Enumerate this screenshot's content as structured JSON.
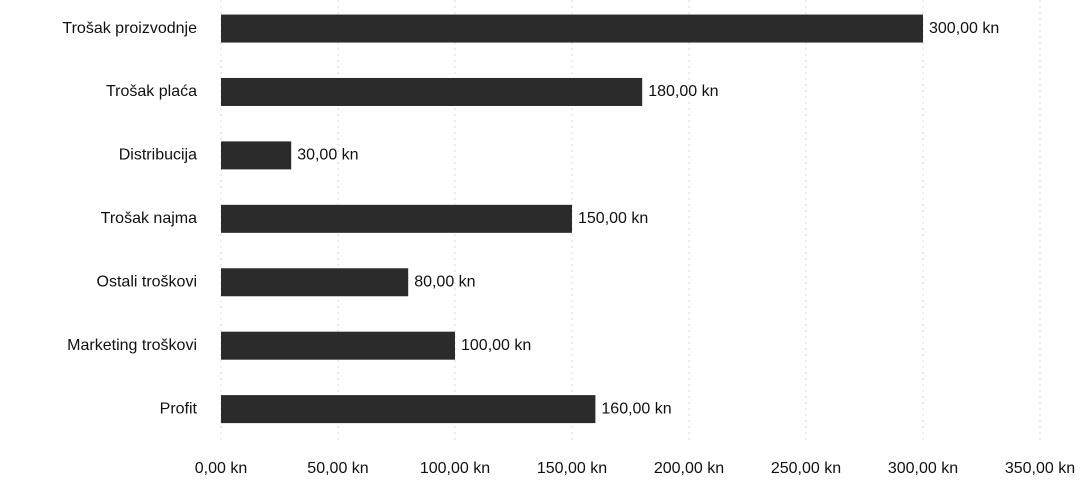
{
  "chart_data": {
    "type": "bar",
    "orientation": "horizontal",
    "categories": [
      "Trošak proizvodnje",
      "Trošak plaća",
      "Distribucija",
      "Trošak najma",
      "Ostali troškovi",
      "Marketing troškovi",
      "Profit"
    ],
    "values": [
      300,
      180,
      30,
      150,
      80,
      100,
      160
    ],
    "value_labels": [
      "300,00 kn",
      "180,00 kn",
      "30,00 kn",
      "150,00 kn",
      "80,00 kn",
      "100,00 kn",
      "160,00 kn"
    ],
    "color": "#2b2b2b",
    "xlim": [
      0,
      350
    ],
    "xticks": [
      {
        "value": 0,
        "label": "0,00 kn"
      },
      {
        "value": 50,
        "label": "50,00 kn"
      },
      {
        "value": 100,
        "label": "100,00 kn"
      },
      {
        "value": 150,
        "label": "150,00 kn"
      },
      {
        "value": 200,
        "label": "200,00 kn"
      },
      {
        "value": 250,
        "label": "250,00 kn"
      },
      {
        "value": 300,
        "label": "300,00 kn"
      },
      {
        "value": 350,
        "label": "350,00 kn"
      }
    ],
    "grid": true
  }
}
